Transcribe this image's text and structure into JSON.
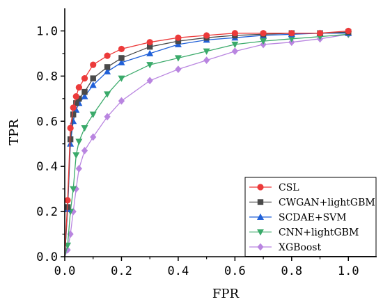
{
  "chart_data": {
    "type": "line",
    "title": "",
    "xlabel": "FPR",
    "ylabel": "TPR",
    "xlim": [
      0,
      1.1
    ],
    "ylim": [
      0,
      1.1
    ],
    "xticks": [
      "0.0",
      "0.2",
      "0.4",
      "0.6",
      "0.8",
      "1.0"
    ],
    "yticks": [
      "0.0",
      "0.2",
      "0.4",
      "0.6",
      "0.8",
      "1.0"
    ],
    "grid": false,
    "legend_position": "bottom-right",
    "series": [
      {
        "name": "CSL",
        "color": "#ec3a3a",
        "marker": "circle",
        "x": [
          0,
          0.01,
          0.02,
          0.03,
          0.04,
          0.05,
          0.07,
          0.1,
          0.15,
          0.2,
          0.3,
          0.4,
          0.5,
          0.6,
          0.7,
          0.8,
          0.9,
          1.0
        ],
        "y": [
          0,
          0.25,
          0.57,
          0.66,
          0.71,
          0.75,
          0.79,
          0.85,
          0.89,
          0.92,
          0.95,
          0.97,
          0.98,
          0.99,
          0.99,
          0.99,
          0.99,
          1.0
        ]
      },
      {
        "name": "CWGAN+lightGBM",
        "color": "#4a4a4a",
        "marker": "square",
        "x": [
          0,
          0.01,
          0.02,
          0.03,
          0.04,
          0.05,
          0.07,
          0.1,
          0.15,
          0.2,
          0.3,
          0.4,
          0.5,
          0.6,
          0.7,
          0.8,
          0.9,
          1.0
        ],
        "y": [
          0,
          0.22,
          0.52,
          0.63,
          0.68,
          0.7,
          0.73,
          0.79,
          0.84,
          0.88,
          0.93,
          0.955,
          0.97,
          0.98,
          0.985,
          0.99,
          0.99,
          0.995
        ]
      },
      {
        "name": "SCDAE+SVM",
        "color": "#2060d8",
        "marker": "triangle-up",
        "x": [
          0,
          0.01,
          0.02,
          0.03,
          0.04,
          0.05,
          0.07,
          0.1,
          0.15,
          0.2,
          0.3,
          0.4,
          0.5,
          0.6,
          0.7,
          0.8,
          0.9,
          1.0
        ],
        "y": [
          0,
          0.21,
          0.5,
          0.6,
          0.65,
          0.68,
          0.71,
          0.76,
          0.82,
          0.86,
          0.9,
          0.94,
          0.96,
          0.97,
          0.98,
          0.985,
          0.99,
          0.99
        ]
      },
      {
        "name": "CNN+lightGBM",
        "color": "#3aaa6a",
        "marker": "triangle-down",
        "x": [
          0,
          0.01,
          0.02,
          0.03,
          0.04,
          0.05,
          0.07,
          0.1,
          0.15,
          0.2,
          0.3,
          0.4,
          0.5,
          0.6,
          0.7,
          0.8,
          0.9,
          1.0
        ],
        "y": [
          0,
          0.05,
          0.2,
          0.3,
          0.45,
          0.51,
          0.57,
          0.63,
          0.72,
          0.79,
          0.85,
          0.88,
          0.91,
          0.94,
          0.955,
          0.965,
          0.975,
          0.985
        ]
      },
      {
        "name": "XGBoost",
        "color": "#b985e0",
        "marker": "diamond",
        "x": [
          0,
          0.01,
          0.02,
          0.03,
          0.04,
          0.05,
          0.07,
          0.1,
          0.15,
          0.2,
          0.3,
          0.4,
          0.5,
          0.6,
          0.7,
          0.8,
          0.9,
          1.0
        ],
        "y": [
          0,
          0.03,
          0.1,
          0.2,
          0.3,
          0.39,
          0.47,
          0.53,
          0.62,
          0.69,
          0.78,
          0.83,
          0.87,
          0.91,
          0.94,
          0.95,
          0.965,
          0.985
        ]
      }
    ]
  }
}
